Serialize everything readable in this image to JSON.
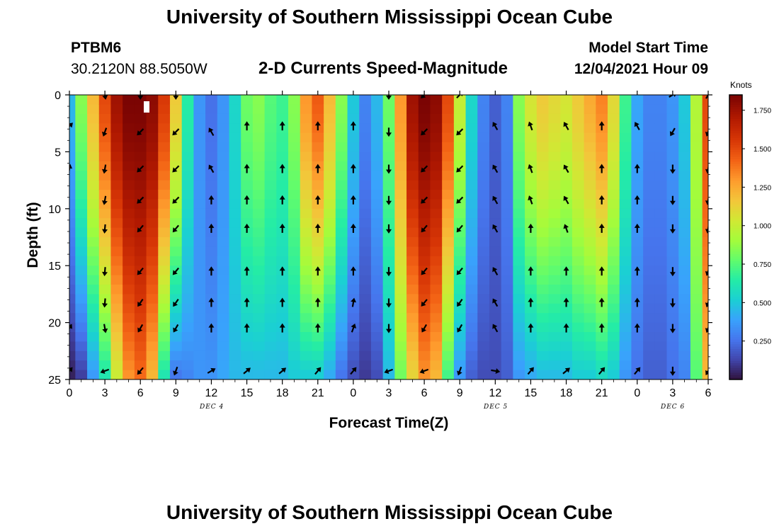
{
  "header": {
    "title": "University of Southern Mississippi Ocean Cube",
    "station_id": "PTBM6",
    "coordinates": "30.2120N  88.5050W",
    "model_start_label": "Model Start Time",
    "model_start_value": "12/04/2021 Hour 09",
    "footer_title": "University of Southern Mississippi Ocean Cube"
  },
  "chart_data": {
    "type": "heatmap",
    "title": "2-D Currents Speed-Magnitude",
    "xlabel": "Forecast Time(Z)",
    "ylabel": "Depth (ft)",
    "x_ticks": [
      "0",
      "3",
      "6",
      "9",
      "12",
      "15",
      "18",
      "21",
      "0",
      "3",
      "6",
      "9",
      "12",
      "15",
      "18",
      "21",
      "0",
      "3",
      "6"
    ],
    "x_start_hour": 0,
    "x_end_hour": 54,
    "y_ticks": [
      "0",
      "5",
      "10",
      "15",
      "20",
      "25"
    ],
    "ylim": [
      0,
      25
    ],
    "date_labels": [
      {
        "text": "DEC 4",
        "hour": 12
      },
      {
        "text": "DEC 5",
        "hour": 36
      },
      {
        "text": "DEC 6",
        "hour": 51
      }
    ],
    "colorbar": {
      "title": "Knots",
      "min": 0,
      "max": 1.85,
      "ticks": [
        "1.750",
        "1.500",
        "1.250",
        "1.000",
        "0.750",
        "0.500",
        "0.250"
      ],
      "tick_values": [
        1.75,
        1.5,
        1.25,
        1.0,
        0.75,
        0.5,
        0.25
      ]
    },
    "profiles": [
      {
        "hour": 0,
        "surface": 0.45,
        "bottom": 0.03
      },
      {
        "hour": 1,
        "surface": 0.85,
        "bottom": 0.1
      },
      {
        "hour": 2,
        "surface": 1.2,
        "bottom": 0.35
      },
      {
        "hour": 3,
        "surface": 1.5,
        "bottom": 0.6
      },
      {
        "hour": 4,
        "surface": 1.75,
        "bottom": 1.0
      },
      {
        "hour": 5,
        "surface": 1.85,
        "bottom": 1.3
      },
      {
        "hour": 6,
        "surface": 1.85,
        "bottom": 1.4
      },
      {
        "hour": 7,
        "surface": 1.8,
        "bottom": 1.2
      },
      {
        "hour": 8,
        "surface": 1.55,
        "bottom": 0.6
      },
      {
        "hour": 9,
        "surface": 1.15,
        "bottom": 0.25
      },
      {
        "hour": 10,
        "surface": 0.65,
        "bottom": 0.3
      },
      {
        "hour": 11,
        "surface": 0.35,
        "bottom": 0.35
      },
      {
        "hour": 12,
        "surface": 0.25,
        "bottom": 0.35
      },
      {
        "hour": 13,
        "surface": 0.35,
        "bottom": 0.4
      },
      {
        "hour": 14,
        "surface": 0.55,
        "bottom": 0.45
      },
      {
        "hour": 15,
        "surface": 0.8,
        "bottom": 0.45
      },
      {
        "hour": 16,
        "surface": 0.85,
        "bottom": 0.45
      },
      {
        "hour": 17,
        "surface": 0.75,
        "bottom": 0.45
      },
      {
        "hour": 18,
        "surface": 0.7,
        "bottom": 0.45
      },
      {
        "hour": 19,
        "surface": 0.85,
        "bottom": 0.5
      },
      {
        "hour": 20,
        "surface": 1.3,
        "bottom": 0.5
      },
      {
        "hour": 21,
        "surface": 1.45,
        "bottom": 0.5
      },
      {
        "hour": 22,
        "surface": 1.2,
        "bottom": 0.4
      },
      {
        "hour": 23,
        "surface": 0.85,
        "bottom": 0.25
      },
      {
        "hour": 24,
        "surface": 0.5,
        "bottom": 0.15
      },
      {
        "hour": 25,
        "surface": 0.3,
        "bottom": 0.1
      },
      {
        "hour": 26,
        "surface": 0.45,
        "bottom": 0.15
      },
      {
        "hour": 27,
        "surface": 0.8,
        "bottom": 0.45
      },
      {
        "hour": 28,
        "surface": 1.3,
        "bottom": 0.8
      },
      {
        "hour": 29,
        "surface": 1.75,
        "bottom": 1.1
      },
      {
        "hour": 30,
        "surface": 1.85,
        "bottom": 1.3
      },
      {
        "hour": 31,
        "surface": 1.8,
        "bottom": 1.2
      },
      {
        "hour": 32,
        "surface": 1.5,
        "bottom": 0.7
      },
      {
        "hour": 33,
        "surface": 1.0,
        "bottom": 0.35
      },
      {
        "hour": 34,
        "surface": 0.55,
        "bottom": 0.2
      },
      {
        "hour": 35,
        "surface": 0.3,
        "bottom": 0.15
      },
      {
        "hour": 36,
        "surface": 0.2,
        "bottom": 0.15
      },
      {
        "hour": 37,
        "surface": 0.3,
        "bottom": 0.2
      },
      {
        "hour": 38,
        "surface": 0.85,
        "bottom": 0.35
      },
      {
        "hour": 39,
        "surface": 1.05,
        "bottom": 0.4
      },
      {
        "hour": 40,
        "surface": 1.15,
        "bottom": 0.45
      },
      {
        "hour": 41,
        "surface": 1.1,
        "bottom": 0.45
      },
      {
        "hour": 42,
        "surface": 1.05,
        "bottom": 0.45
      },
      {
        "hour": 43,
        "surface": 1.15,
        "bottom": 0.5
      },
      {
        "hour": 44,
        "surface": 1.25,
        "bottom": 0.5
      },
      {
        "hour": 45,
        "surface": 1.35,
        "bottom": 0.55
      },
      {
        "hour": 46,
        "surface": 1.1,
        "bottom": 0.5
      },
      {
        "hour": 47,
        "surface": 0.7,
        "bottom": 0.35
      },
      {
        "hour": 48,
        "surface": 0.4,
        "bottom": 0.25
      },
      {
        "hour": 49,
        "surface": 0.3,
        "bottom": 0.2
      },
      {
        "hour": 50,
        "surface": 0.3,
        "bottom": 0.2
      },
      {
        "hour": 51,
        "surface": 0.35,
        "bottom": 0.25
      },
      {
        "hour": 52,
        "surface": 0.5,
        "bottom": 0.3
      },
      {
        "hour": 53,
        "surface": 0.95,
        "bottom": 0.75
      },
      {
        "hour": 54,
        "surface": 1.5,
        "bottom": 1.2
      }
    ],
    "arrow_depths": [
      0,
      2.75,
      3.25,
      6.5,
      9.25,
      11.75,
      15.5,
      18.25,
      20.5,
      24.25
    ],
    "arrows": [
      {
        "hour": 0,
        "dir_deg": [
          null,
          45,
          null,
          10,
          null,
          null,
          null,
          null,
          30,
          40
        ]
      },
      {
        "hour": 3,
        "dir_deg": [
          170,
          null,
          200,
          190,
          190,
          185,
          185,
          185,
          170,
          250
        ]
      },
      {
        "hour": 6,
        "dir_deg": [
          180,
          null,
          225,
          225,
          225,
          220,
          220,
          215,
          210,
          220
        ]
      },
      {
        "hour": 9,
        "dir_deg": [
          180,
          null,
          225,
          225,
          225,
          220,
          220,
          215,
          210,
          200
        ]
      },
      {
        "hour": 12,
        "dir_deg": [
          null,
          null,
          330,
          330,
          0,
          0,
          0,
          0,
          0,
          60
        ]
      },
      {
        "hour": 15,
        "dir_deg": [
          null,
          0,
          null,
          0,
          0,
          0,
          0,
          0,
          0,
          50
        ]
      },
      {
        "hour": 18,
        "dir_deg": [
          null,
          0,
          null,
          0,
          0,
          0,
          0,
          0,
          0,
          50
        ]
      },
      {
        "hour": 21,
        "dir_deg": [
          null,
          0,
          null,
          0,
          0,
          0,
          0,
          0,
          0,
          40
        ]
      },
      {
        "hour": 24,
        "dir_deg": [
          null,
          0,
          null,
          0,
          0,
          0,
          0,
          10,
          20,
          40
        ]
      },
      {
        "hour": 27,
        "dir_deg": [
          180,
          null,
          180,
          180,
          180,
          180,
          180,
          180,
          180,
          250
        ]
      },
      {
        "hour": 30,
        "dir_deg": [
          225,
          null,
          225,
          225,
          225,
          220,
          220,
          220,
          210,
          250
        ]
      },
      {
        "hour": 33,
        "dir_deg": [
          45,
          null,
          225,
          225,
          225,
          220,
          220,
          215,
          210,
          200
        ]
      },
      {
        "hour": 36,
        "dir_deg": [
          null,
          330,
          null,
          330,
          330,
          330,
          330,
          330,
          330,
          100
        ]
      },
      {
        "hour": 39,
        "dir_deg": [
          null,
          340,
          null,
          340,
          340,
          0,
          0,
          0,
          0,
          40
        ]
      },
      {
        "hour": 42,
        "dir_deg": [
          null,
          330,
          null,
          330,
          330,
          340,
          0,
          0,
          0,
          50
        ]
      },
      {
        "hour": 45,
        "dir_deg": [
          null,
          0,
          null,
          0,
          0,
          0,
          0,
          0,
          0,
          40
        ]
      },
      {
        "hour": 48,
        "dir_deg": [
          null,
          330,
          null,
          0,
          0,
          0,
          0,
          0,
          0,
          40
        ]
      },
      {
        "hour": 51,
        "dir_deg": [
          60,
          null,
          210,
          180,
          180,
          180,
          180,
          180,
          180,
          180
        ]
      },
      {
        "hour": 54,
        "dir_deg": [
          30,
          null,
          200,
          190,
          190,
          190,
          200,
          200,
          200,
          210
        ]
      }
    ]
  }
}
